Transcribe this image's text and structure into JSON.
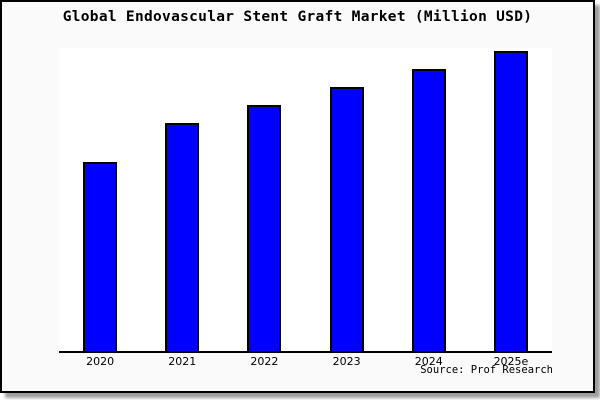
{
  "frame": {
    "background": "#fafafa",
    "plot_background": "#ffffff",
    "border_color": "#000000",
    "shadow_color": "#9e9e9e"
  },
  "title": "Global Endovascular Stent Graft Market (Million USD)",
  "source_note": "Source: Prof Research",
  "chart_data": {
    "type": "bar",
    "title": "Global Endovascular Stent Graft Market (Million USD)",
    "categories": [
      "2020",
      "2021",
      "2022",
      "2023",
      "2024",
      "2025e"
    ],
    "values": [
      63,
      76,
      82,
      88,
      94,
      100
    ],
    "values_note": "no numeric y-axis shown; values are relative bar heights with tallest bar (2025e) = 100",
    "xlabel": "",
    "ylabel": "",
    "ylim": [
      0,
      101
    ],
    "bar_color": "#0000ff",
    "bar_border_color": "#000000",
    "axis_color": "#000000",
    "gridlines": false,
    "y_axis_ticks_visible": false,
    "legend": "none",
    "source": "Source: Prof Research"
  }
}
